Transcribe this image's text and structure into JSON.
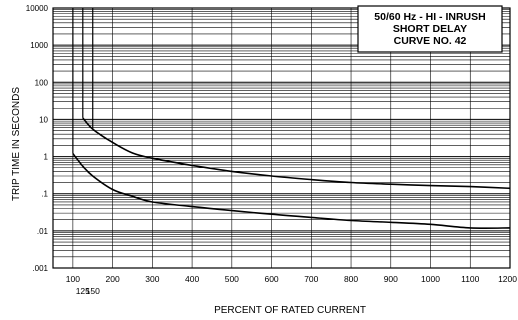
{
  "chart_data": {
    "type": "line",
    "title_lines": [
      "50/60 Hz - HI - INRUSH",
      "SHORT DELAY",
      "CURVE NO. 42"
    ],
    "xlabel": "PERCENT OF RATED CURRENT",
    "ylabel": "TRIP TIME IN SECONDS",
    "x_scale": "linear",
    "y_scale": "log",
    "xlim": [
      50,
      1200
    ],
    "ylim": [
      0.001,
      10000
    ],
    "x_ticks": [
      100,
      200,
      300,
      400,
      500,
      600,
      700,
      800,
      900,
      1000,
      1100,
      1200
    ],
    "x_tick_labels": [
      "100",
      "200",
      "300",
      "400",
      "500",
      "600",
      "700",
      "800",
      "900",
      "1000",
      "1100",
      "1200"
    ],
    "x_extra_ticks": [
      125,
      150
    ],
    "x_extra_tick_labels": [
      "125",
      "150"
    ],
    "y_ticks": [
      0.001,
      0.01,
      0.1,
      1,
      10,
      100,
      1000,
      10000
    ],
    "y_tick_labels": [
      ".001",
      ".01",
      ".1",
      "1",
      "10",
      "100",
      "1000",
      "10000"
    ],
    "grid": true,
    "legend": "none",
    "title_position": "top-right",
    "series": [
      {
        "x": [
          100,
          125,
          150,
          200,
          250,
          300,
          400,
          500,
          600,
          700,
          800,
          900,
          1000,
          1100,
          1200
        ],
        "y": [
          1.2,
          0.55,
          0.3,
          0.13,
          0.085,
          0.06,
          0.045,
          0.035,
          0.028,
          0.023,
          0.019,
          0.017,
          0.015,
          0.012,
          0.012
        ]
      },
      {
        "x": [
          125,
          150,
          200,
          250,
          300,
          400,
          500,
          600,
          700,
          800,
          900,
          1000,
          1100,
          1200
        ],
        "y": [
          11,
          5.5,
          2.4,
          1.25,
          0.9,
          0.58,
          0.4,
          0.3,
          0.24,
          0.2,
          0.18,
          0.165,
          0.155,
          0.14
        ]
      }
    ],
    "vertical_lines": [
      {
        "x": 100,
        "y_from": 1.2,
        "y_to": 10000
      },
      {
        "x": 125,
        "y_from": 11,
        "y_to": 10000
      },
      {
        "x": 150,
        "y_from": 5.5,
        "y_to": 10000
      }
    ]
  }
}
